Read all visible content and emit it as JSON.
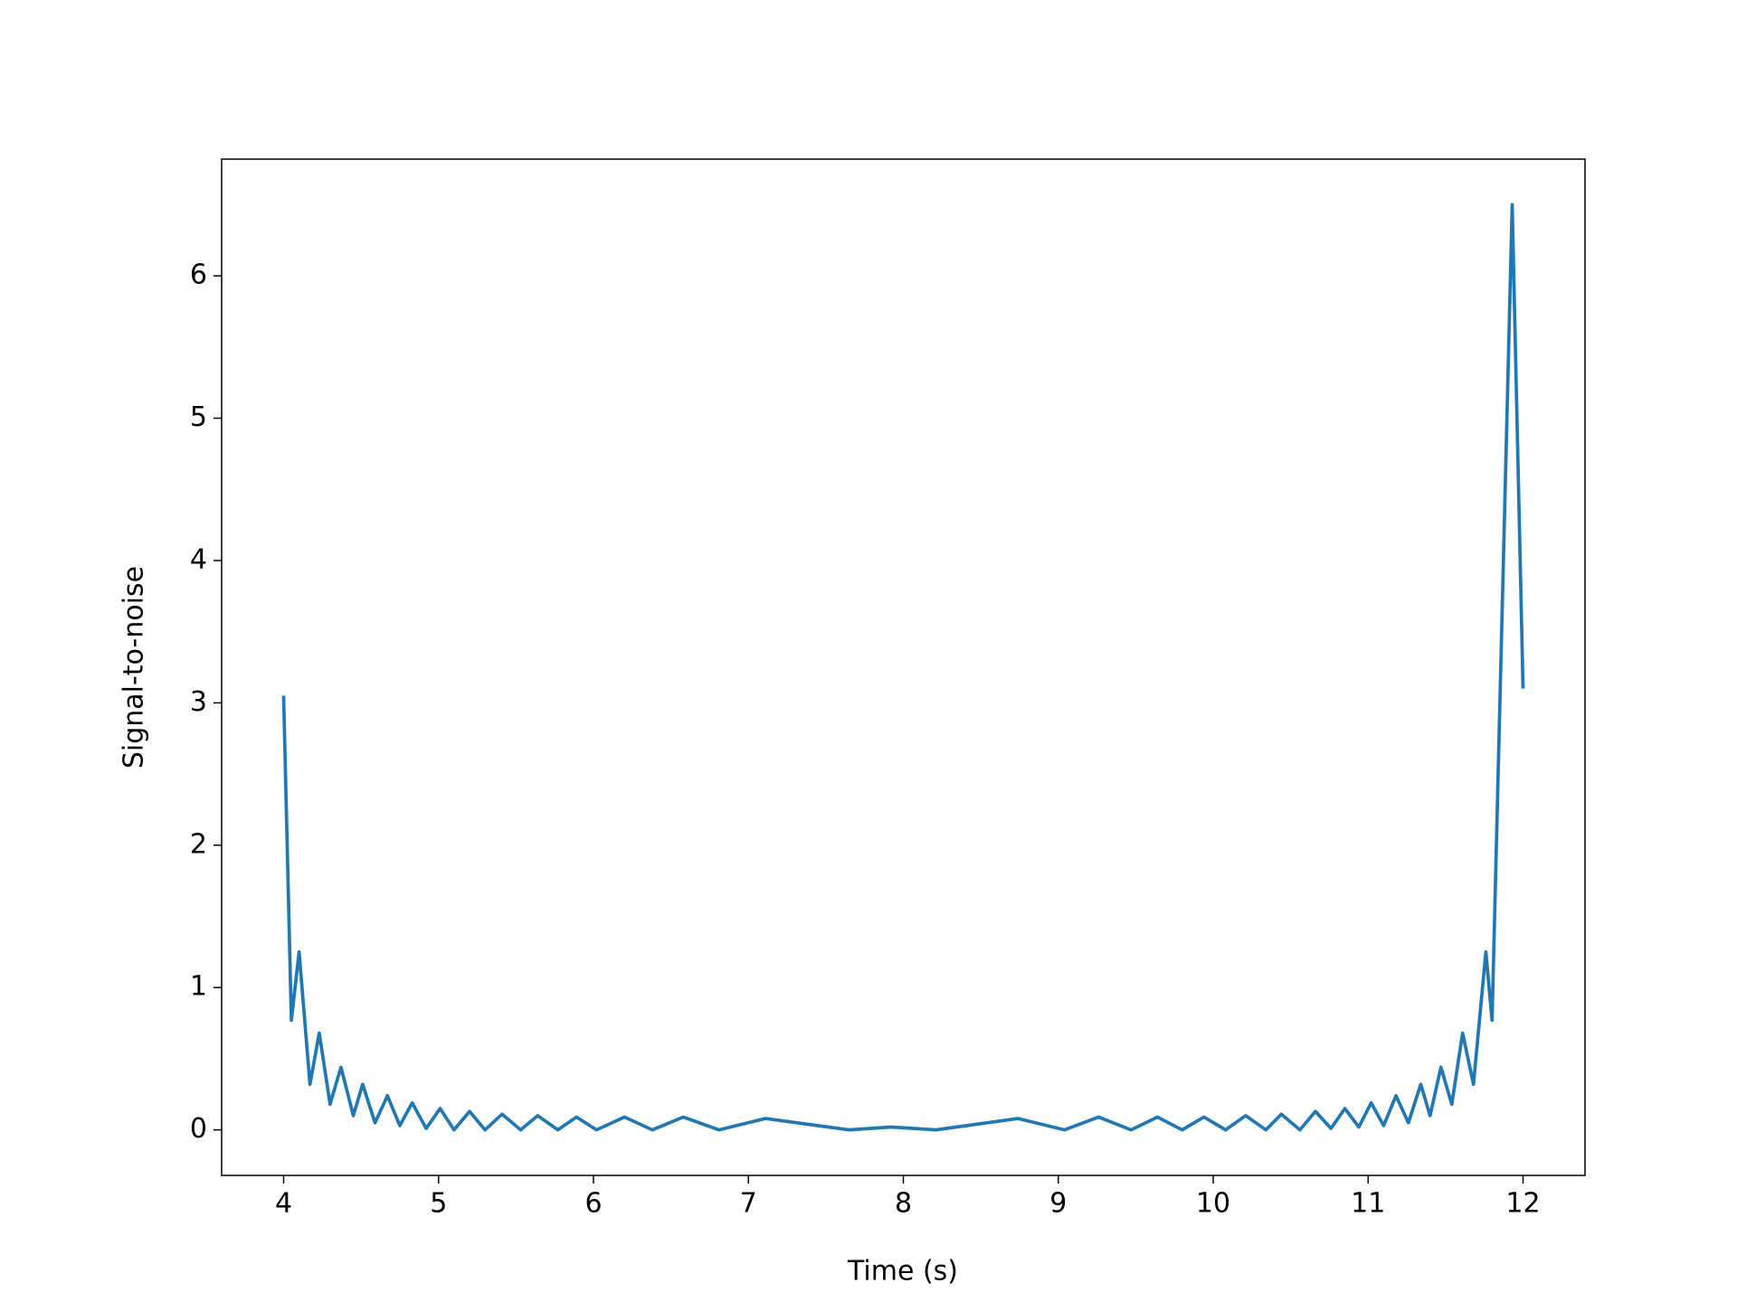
{
  "chart_data": {
    "type": "line",
    "xlabel": "Time (s)",
    "ylabel": "Signal-to-noise",
    "x": [
      4.0,
      4.05,
      4.1,
      4.17,
      4.23,
      4.3,
      4.37,
      4.45,
      4.51,
      4.59,
      4.67,
      4.75,
      4.83,
      4.92,
      5.01,
      5.1,
      5.2,
      5.3,
      5.41,
      5.53,
      5.64,
      5.77,
      5.89,
      6.02,
      6.2,
      6.38,
      6.58,
      6.81,
      7.11,
      7.65,
      7.92,
      8.21,
      8.74,
      9.04,
      9.26,
      9.47,
      9.64,
      9.8,
      9.94,
      10.08,
      10.21,
      10.34,
      10.44,
      10.56,
      10.66,
      10.76,
      10.85,
      10.94,
      11.02,
      11.1,
      11.18,
      11.26,
      11.34,
      11.4,
      11.47,
      11.54,
      11.61,
      11.68,
      11.76,
      11.8,
      11.93,
      12.0
    ],
    "series": [
      {
        "color": "#1f77b4",
        "values": [
          3.05,
          0.77,
          1.25,
          0.32,
          0.68,
          0.18,
          0.44,
          0.1,
          0.32,
          0.05,
          0.24,
          0.03,
          0.19,
          0.01,
          0.15,
          0,
          0.13,
          0,
          0.11,
          0,
          0.1,
          0,
          0.09,
          0,
          0.09,
          0,
          0.09,
          0,
          0.08,
          0,
          0.02,
          0,
          0.08,
          0,
          0.09,
          0,
          0.09,
          0,
          0.09,
          0,
          0.1,
          0,
          0.11,
          0,
          0.13,
          0.01,
          0.15,
          0.02,
          0.19,
          0.03,
          0.24,
          0.05,
          0.32,
          0.1,
          0.44,
          0.18,
          0.68,
          0.32,
          1.25,
          0.77,
          6.5,
          3.1
        ]
      }
    ],
    "xlim": [
      3.6,
      12.4
    ],
    "xticks": [
      4,
      5,
      6,
      7,
      8,
      9,
      10,
      11,
      12
    ],
    "ylim": [
      -0.32,
      6.82
    ],
    "yticks": [
      0,
      1,
      2,
      3,
      4,
      5,
      6
    ],
    "grid": false
  }
}
